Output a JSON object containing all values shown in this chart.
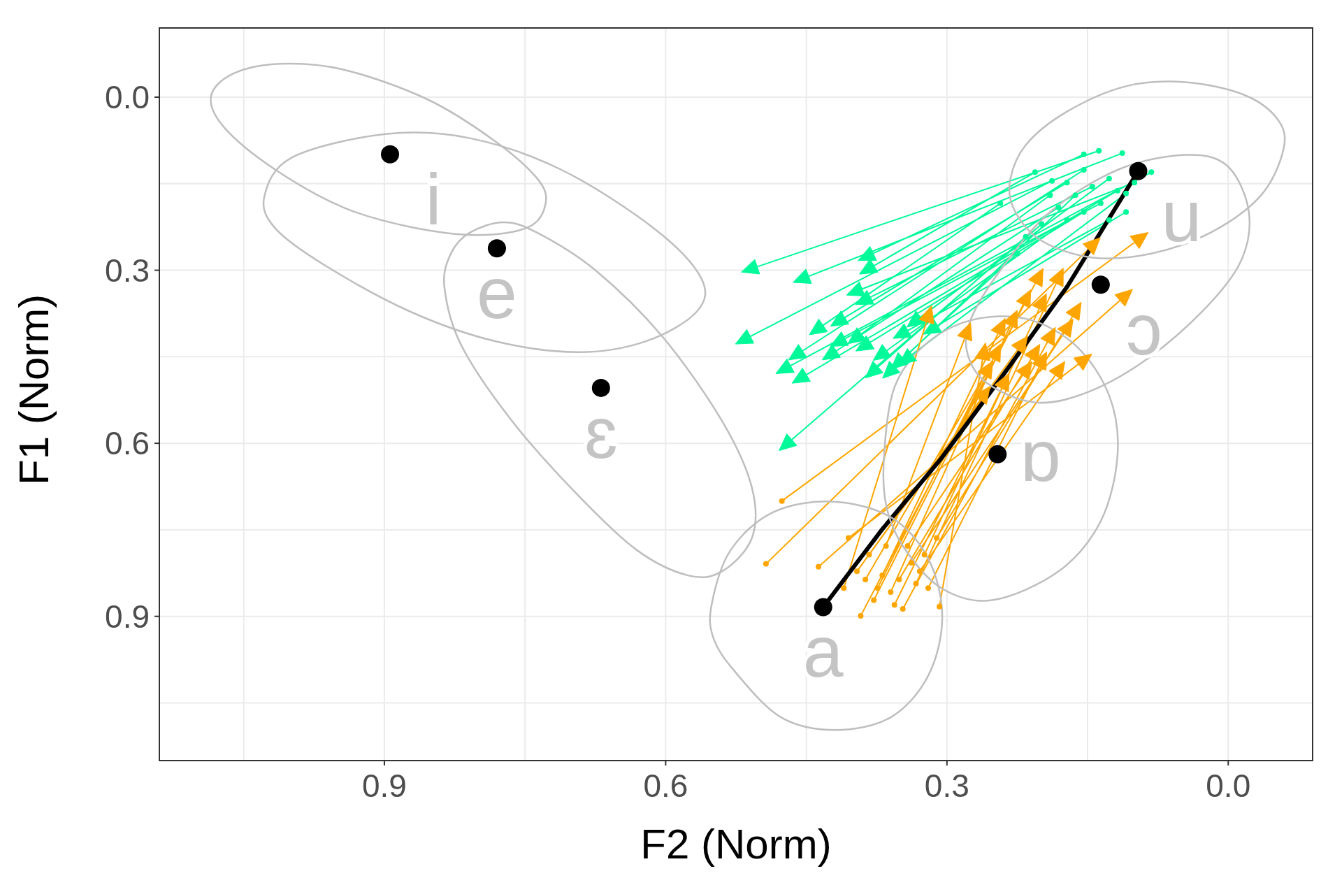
{
  "chart_data": {
    "type": "line",
    "xlabel": "F2 (Norm)",
    "ylabel": "F1 (Norm)",
    "xlim": [
      1.14,
      -0.09
    ],
    "ylim": [
      1.15,
      -0.12
    ],
    "xticks": [
      {
        "value": 1.05,
        "label": null
      },
      {
        "value": 0.9,
        "label": "0.9"
      },
      {
        "value": 0.75,
        "label": null
      },
      {
        "value": 0.6,
        "label": "0.6"
      },
      {
        "value": 0.45,
        "label": null
      },
      {
        "value": 0.3,
        "label": "0.3"
      },
      {
        "value": 0.15,
        "label": null
      },
      {
        "value": 0,
        "label": "0.0"
      }
    ],
    "yticks": [
      {
        "value": 0,
        "label": "0.0"
      },
      {
        "value": 0.15,
        "label": null
      },
      {
        "value": 0.3,
        "label": "0.3"
      },
      {
        "value": 0.45,
        "label": null
      },
      {
        "value": 0.6,
        "label": "0.6"
      },
      {
        "value": 0.75,
        "label": null
      },
      {
        "value": 0.9,
        "label": "0.9"
      },
      {
        "value": 1.05,
        "label": null
      }
    ],
    "grid": true,
    "line_style": "solid",
    "marker": "none",
    "annotations": [
      {
        "text": "i",
        "x": 0.894,
        "y": 0.099
      },
      {
        "text": "e",
        "x": 0.78,
        "y": 0.262
      },
      {
        "text": "ɛ",
        "x": 0.669,
        "y": 0.504
      },
      {
        "text": "a",
        "x": 0.432,
        "y": 0.884
      },
      {
        "text": "ɒ",
        "x": 0.246,
        "y": 0.619
      },
      {
        "text": "ɔ",
        "x": 0.136,
        "y": 0.325
      },
      {
        "text": "u",
        "x": 0.096,
        "y": 0.128
      }
    ],
    "series": [
      {
        "color": "#00fa9a",
        "x": [
          0.138,
          0.508,
          null,
          0.113,
          0.453,
          null,
          0.154,
          0.384,
          null,
          0.206,
          0.383,
          null,
          0.188,
          0.515,
          null,
          0.082,
          0.472,
          null,
          0.118,
          0.455,
          null,
          0.163,
          0.36,
          null,
          0.199,
          0.47,
          null,
          0.136,
          0.414,
          null,
          0.154,
          0.387,
          null,
          0.1,
          0.396,
          null,
          0.243,
          0.437,
          null,
          0.172,
          0.369,
          null,
          0.127,
          0.333,
          null,
          0.109,
          0.342,
          null,
          0.145,
          0.387,
          null,
          0.181,
          0.423,
          null,
          0.216,
          0.378,
          null,
          0.109,
          0.315,
          null,
          0.154,
          0.459,
          null,
          0.19,
          0.396,
          null,
          0.127,
          0.347,
          null,
          0.172,
          0.414,
          null,
          0.225,
          0.351
        ],
        "values": [
          0.093,
          0.297,
          null,
          0.097,
          0.314,
          null,
          0.099,
          0.275,
          null,
          0.13,
          0.297,
          null,
          0.145,
          0.419,
          null,
          0.13,
          0.47,
          null,
          0.162,
          0.486,
          null,
          0.17,
          0.474,
          null,
          0.22,
          0.6,
          null,
          0.184,
          0.423,
          null,
          0.199,
          0.43,
          null,
          0.148,
          0.336,
          null,
          0.184,
          0.401,
          null,
          0.213,
          0.445,
          null,
          0.141,
          0.387,
          null,
          0.167,
          0.452,
          null,
          0.155,
          0.351,
          null,
          0.191,
          0.445,
          null,
          0.242,
          0.474,
          null,
          0.199,
          0.401,
          null,
          0.126,
          0.445,
          null,
          0.17,
          0.416,
          null,
          0.213,
          0.409,
          null,
          0.148,
          0.387,
          null,
          0.271,
          0.459
        ]
      },
      {
        "type": "scatter",
        "marker": "circle",
        "color": "#00fa9a",
        "x": [
          0.138,
          0.113,
          0.154,
          0.206,
          0.188,
          0.082,
          0.118,
          0.163,
          0.199,
          0.136,
          0.154,
          0.1,
          0.243,
          0.172,
          0.127,
          0.109,
          0.145,
          0.181,
          0.216,
          0.109,
          0.154,
          0.19,
          0.127,
          0.172,
          0.225
        ],
        "values": [
          0.093,
          0.097,
          0.099,
          0.13,
          0.145,
          0.13,
          0.162,
          0.17,
          0.22,
          0.184,
          0.199,
          0.148,
          0.184,
          0.213,
          0.141,
          0.167,
          0.155,
          0.191,
          0.242,
          0.199,
          0.126,
          0.17,
          0.213,
          0.148,
          0.271
        ]
      },
      {
        "type": "scatter",
        "marker": "triangle",
        "color": "#00fa9a",
        "x": [
          0.508,
          0.453,
          0.384,
          0.383,
          0.515,
          0.472,
          0.455,
          0.36,
          0.47,
          0.414,
          0.387,
          0.396,
          0.437,
          0.369,
          0.333,
          0.342,
          0.387,
          0.423,
          0.378,
          0.315,
          0.459,
          0.396,
          0.347,
          0.414,
          0.351
        ],
        "values": [
          0.297,
          0.314,
          0.275,
          0.297,
          0.419,
          0.47,
          0.486,
          0.474,
          0.6,
          0.423,
          0.43,
          0.336,
          0.401,
          0.445,
          0.387,
          0.452,
          0.351,
          0.445,
          0.474,
          0.401,
          0.445,
          0.416,
          0.409,
          0.387,
          0.459
        ]
      },
      {
        "color": "#ffa500",
        "x": [
          0.476,
          0.095,
          null,
          0.493,
          0.145,
          null,
          0.437,
          0.111,
          null,
          0.405,
          0.155,
          null,
          0.392,
          0.203,
          null,
          0.378,
          0.216,
          null,
          0.36,
          0.23,
          null,
          0.347,
          0.19,
          null,
          0.333,
          0.181,
          null,
          0.308,
          0.261,
          null,
          0.369,
          0.243,
          null,
          0.324,
          0.199,
          null,
          0.311,
          0.163,
          null,
          0.387,
          0.257,
          null,
          0.351,
          0.207,
          null,
          0.338,
          0.172,
          null,
          0.41,
          0.32,
          null,
          0.356,
          0.239,
          null,
          0.383,
          0.221,
          null,
          0.329,
          0.181,
          null,
          0.365,
          0.279,
          null,
          0.342,
          0.216,
          null,
          0.396,
          0.261,
          null,
          0.32,
          0.199,
          null,
          0.374,
          0.248
        ],
        "values": [
          0.7,
          0.246,
          null,
          0.809,
          0.257,
          null,
          0.814,
          0.346,
          null,
          0.764,
          0.457,
          null,
          0.899,
          0.314,
          null,
          0.872,
          0.351,
          null,
          0.858,
          0.387,
          null,
          0.887,
          0.416,
          null,
          0.843,
          0.314,
          null,
          0.883,
          0.445,
          null,
          0.829,
          0.401,
          null,
          0.793,
          0.358,
          null,
          0.764,
          0.372,
          null,
          0.836,
          0.474,
          null,
          0.836,
          0.445,
          null,
          0.807,
          0.401,
          null,
          0.851,
          0.38,
          null,
          0.88,
          0.496,
          null,
          0.793,
          0.43,
          null,
          0.822,
          0.474,
          null,
          0.778,
          0.409,
          null,
          0.778,
          0.474,
          null,
          0.822,
          0.517,
          null,
          0.851,
          0.459,
          null,
          0.851,
          0.445
        ]
      },
      {
        "type": "scatter",
        "marker": "circle",
        "color": "#ffa500",
        "x": [
          0.476,
          0.493,
          0.437,
          0.405,
          0.392,
          0.378,
          0.36,
          0.347,
          0.333,
          0.308,
          0.369,
          0.324,
          0.311,
          0.387,
          0.351,
          0.338,
          0.41,
          0.356,
          0.383,
          0.329,
          0.365,
          0.342,
          0.396,
          0.32,
          0.374
        ],
        "values": [
          0.7,
          0.809,
          0.814,
          0.764,
          0.899,
          0.872,
          0.858,
          0.887,
          0.843,
          0.883,
          0.829,
          0.793,
          0.764,
          0.836,
          0.836,
          0.807,
          0.851,
          0.88,
          0.793,
          0.822,
          0.778,
          0.778,
          0.822,
          0.851,
          0.851
        ]
      },
      {
        "type": "scatter",
        "marker": "triangle",
        "color": "#ffa500",
        "x": [
          0.095,
          0.145,
          0.111,
          0.155,
          0.203,
          0.216,
          0.23,
          0.19,
          0.181,
          0.261,
          0.243,
          0.199,
          0.163,
          0.257,
          0.207,
          0.172,
          0.32,
          0.239,
          0.221,
          0.181,
          0.279,
          0.216,
          0.261,
          0.199,
          0.248
        ],
        "values": [
          0.246,
          0.257,
          0.346,
          0.457,
          0.314,
          0.351,
          0.387,
          0.416,
          0.314,
          0.445,
          0.401,
          0.358,
          0.372,
          0.474,
          0.445,
          0.401,
          0.38,
          0.496,
          0.43,
          0.474,
          0.409,
          0.474,
          0.517,
          0.459,
          0.445
        ]
      },
      {
        "color": "#000000",
        "x": [
          0.432,
          0.369,
          0.306,
          0.243,
          0.172,
          0.096
        ],
        "values": [
          0.884,
          0.749,
          0.626,
          0.488,
          0.329,
          0.128
        ]
      },
      {
        "type": "scatter",
        "marker": "circle",
        "color": "#000000",
        "x": [
          0.894,
          0.78,
          0.669,
          0.432,
          0.246,
          0.136,
          0.096
        ],
        "values": [
          0.099,
          0.262,
          0.504,
          0.884,
          0.619,
          0.325,
          0.128
        ]
      }
    ]
  }
}
